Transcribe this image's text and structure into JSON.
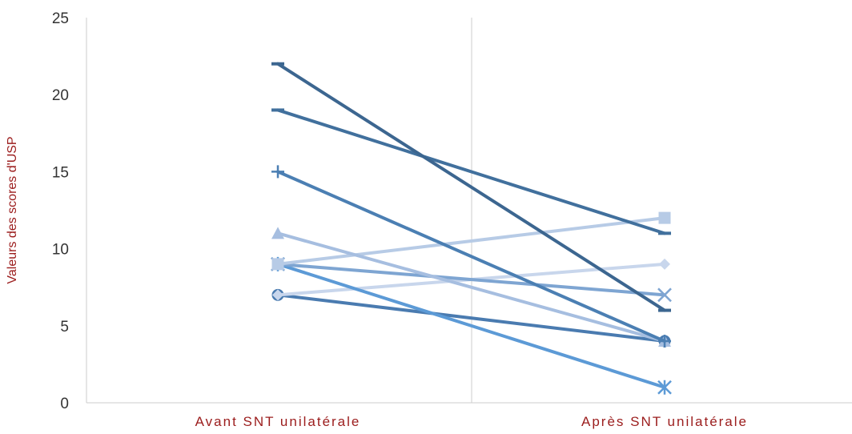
{
  "chart_data": {
    "type": "line",
    "categories": [
      "Avant SNT unilatérale",
      "Après SNT unilatérale"
    ],
    "ylabel": "Valeurs des scores d'USP",
    "ylim": [
      0,
      25
    ],
    "yticks": [
      0,
      5,
      10,
      15,
      20,
      25
    ],
    "grid": false,
    "colors": {
      "label": "#9b1c1c",
      "axis": "#cccccc"
    },
    "series": [
      {
        "values": [
          22,
          6
        ],
        "color": "#3c6690",
        "marker": "dash"
      },
      {
        "values": [
          19,
          11
        ],
        "color": "#41709d",
        "marker": "dash"
      },
      {
        "values": [
          15,
          4
        ],
        "color": "#4b7fb3",
        "marker": "plus"
      },
      {
        "values": [
          11,
          4
        ],
        "color": "#a6bee0",
        "marker": "triangle"
      },
      {
        "values": [
          9,
          12
        ],
        "color": "#b7cbe6",
        "marker": "square"
      },
      {
        "values": [
          9,
          7
        ],
        "color": "#7ea5d2",
        "marker": "x"
      },
      {
        "values": [
          9,
          1
        ],
        "color": "#5c9ad6",
        "marker": "asterisk"
      },
      {
        "values": [
          7,
          9
        ],
        "color": "#c8d6ec",
        "marker": "diamond"
      },
      {
        "values": [
          7,
          4
        ],
        "color": "#4a7bb0",
        "marker": "circle"
      }
    ]
  }
}
